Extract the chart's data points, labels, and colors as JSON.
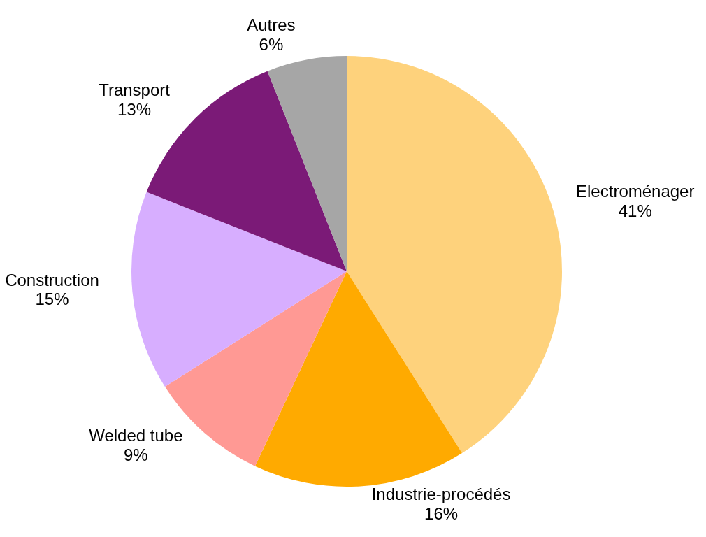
{
  "chart_data": {
    "type": "pie",
    "categories": [
      "Electroménager",
      "Industrie-procédés",
      "Welded tube",
      "Construction",
      "Transport",
      "Autres"
    ],
    "values": [
      41,
      16,
      9,
      15,
      13,
      6
    ],
    "value_labels": [
      "41%",
      "16%",
      "9%",
      "15%",
      "13%",
      "6%"
    ],
    "colors": [
      "#fed27c",
      "#ffaa00",
      "#ff9994",
      "#d7aeff",
      "#7b1a77",
      "#a6a6a6"
    ],
    "legend": false
  }
}
